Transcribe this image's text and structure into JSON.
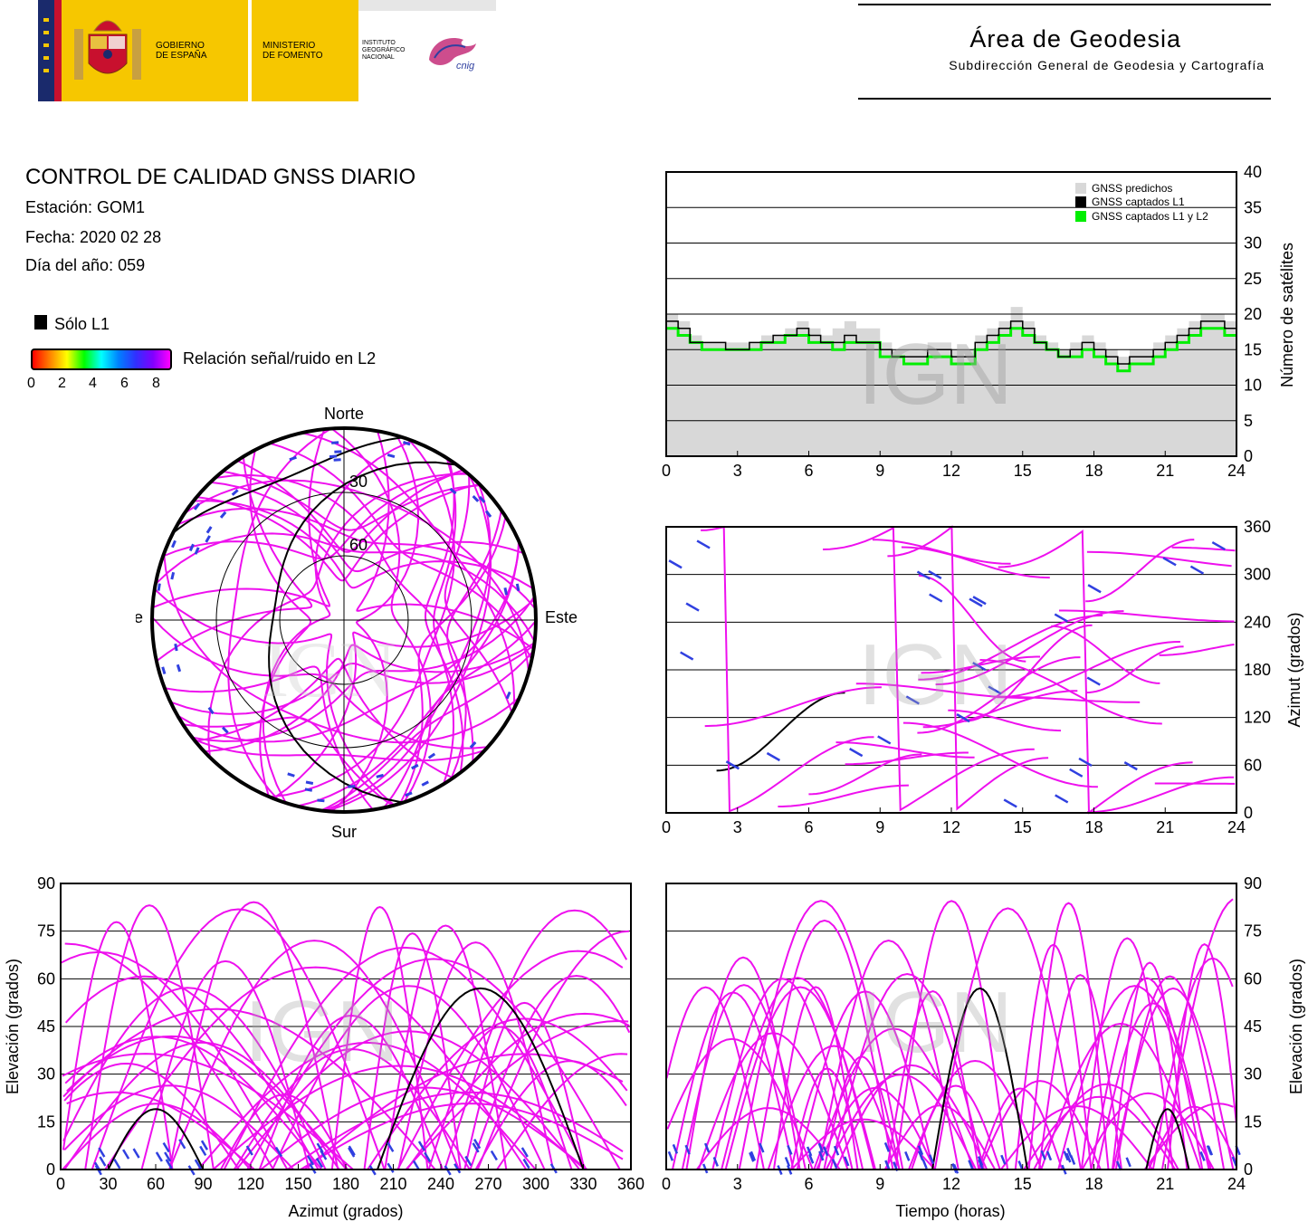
{
  "header": {
    "gov_line1": "GOBIERNO",
    "gov_line2": "DE ESPAÑA",
    "min_line1": "MINISTERIO",
    "min_line2": "DE FOMENTO",
    "ign_line1": "INSTITUTO",
    "ign_line2": "GEOGRÁFICO",
    "ign_line3": "NACIONAL",
    "cnig": "cnig",
    "area_title": "Área de Geodesia",
    "area_subtitle": "Subdirección General de Geodesia y Cartografía"
  },
  "info": {
    "title": "CONTROL DE CALIDAD GNSS DIARIO",
    "station": "Estación: GOM1",
    "date": "Fecha: 2020 02 28",
    "doy": "Día del año: 059",
    "legend_l1": "Sólo L1",
    "legend_snr": "Relación señal/ruido en L2",
    "snr_ticks": [
      "0",
      "2",
      "4",
      "6",
      "8"
    ],
    "snr_colors": [
      "#ff0000",
      "#ff8000",
      "#ffff00",
      "#00ff00",
      "#00ffff",
      "#0080ff",
      "#3030ff",
      "#8000ff",
      "#ff00ff"
    ]
  },
  "watermark": "IGN",
  "colors": {
    "track": "#ee10ee",
    "track_low": "#3040e0",
    "l1_only": "#000000",
    "predicted": "#d8d8d8",
    "captured_l1": "#000000",
    "captured_l1l2": "#00ee00"
  },
  "chart_data": [
    {
      "id": "satellites",
      "type": "line",
      "xlim": [
        0,
        24
      ],
      "ylim": [
        0,
        40
      ],
      "xticks": [
        "0",
        "3",
        "6",
        "9",
        "12",
        "15",
        "18",
        "21",
        "24"
      ],
      "yticks": [
        "0",
        "5",
        "10",
        "15",
        "20",
        "25",
        "30",
        "35",
        "40"
      ],
      "ylabel": "Número de satélites",
      "legend": [
        "GNSS predichos",
        "GNSS captados L1",
        "GNSS captados L1 y L2"
      ],
      "x": [
        0,
        0.5,
        1,
        1.5,
        2,
        2.5,
        3,
        3.5,
        4,
        4.5,
        5,
        5.5,
        6,
        6.5,
        7,
        7.5,
        8,
        8.5,
        9,
        9.5,
        10,
        10.5,
        11,
        11.5,
        12,
        12.5,
        13,
        13.5,
        14,
        14.5,
        15,
        15.5,
        16,
        16.5,
        17,
        17.5,
        18,
        18.5,
        19,
        19.5,
        20,
        20.5,
        21,
        21.5,
        22,
        22.5,
        23,
        23.5,
        24
      ],
      "series": [
        {
          "name": "GNSS predichos",
          "values": [
            20,
            19,
            17,
            16,
            16,
            16,
            16,
            16,
            17,
            17,
            18,
            19,
            18,
            17,
            18,
            19,
            18,
            18,
            16,
            15,
            15,
            15,
            16,
            16,
            15,
            15,
            17,
            18,
            19,
            21,
            19,
            17,
            16,
            15,
            16,
            17,
            16,
            15,
            14,
            15,
            15,
            16,
            17,
            18,
            19,
            20,
            20,
            19,
            18
          ]
        },
        {
          "name": "GNSS captados L1",
          "values": [
            19,
            18,
            16,
            16,
            16,
            15,
            15,
            16,
            16,
            17,
            17,
            18,
            17,
            16,
            16,
            17,
            16,
            16,
            15,
            14,
            14,
            14,
            15,
            15,
            14,
            14,
            16,
            17,
            18,
            19,
            18,
            16,
            15,
            14,
            15,
            16,
            15,
            14,
            13,
            14,
            14,
            15,
            16,
            17,
            18,
            19,
            19,
            18,
            17
          ]
        },
        {
          "name": "GNSS captados L1 y L2",
          "values": [
            18,
            17,
            16,
            15,
            15,
            15,
            15,
            15,
            16,
            16,
            17,
            17,
            16,
            16,
            15,
            16,
            16,
            16,
            14,
            14,
            13,
            13,
            14,
            14,
            13,
            13,
            15,
            16,
            17,
            18,
            17,
            16,
            15,
            14,
            14,
            15,
            14,
            13,
            12,
            13,
            13,
            14,
            15,
            16,
            17,
            18,
            18,
            17,
            17
          ]
        }
      ]
    },
    {
      "id": "skyplot",
      "type": "scatter",
      "title": "",
      "directions": {
        "north": "Norte",
        "south": "Sur",
        "east": "Este",
        "west": "Oeste"
      },
      "rings": [
        "30",
        "60"
      ]
    },
    {
      "id": "azimuth-time",
      "type": "scatter",
      "xlim": [
        0,
        24
      ],
      "ylim": [
        0,
        360
      ],
      "xticks": [
        "0",
        "3",
        "6",
        "9",
        "12",
        "15",
        "18",
        "21",
        "24"
      ],
      "yticks": [
        "0",
        "60",
        "120",
        "180",
        "240",
        "300",
        "360"
      ],
      "ylabel": "Azimut (grados)"
    },
    {
      "id": "elevation-azimuth",
      "type": "scatter",
      "xlim": [
        0,
        360
      ],
      "ylim": [
        0,
        90
      ],
      "xticks": [
        "0",
        "30",
        "60",
        "90",
        "120",
        "150",
        "180",
        "210",
        "240",
        "270",
        "300",
        "330",
        "360"
      ],
      "yticks": [
        "0",
        "15",
        "30",
        "45",
        "60",
        "75",
        "90"
      ],
      "xlabel": "Azimut (grados)",
      "ylabel": "Elevación (grados)"
    },
    {
      "id": "elevation-time",
      "type": "line",
      "xlim": [
        0,
        24
      ],
      "ylim": [
        0,
        90
      ],
      "xticks": [
        "0",
        "3",
        "6",
        "9",
        "12",
        "15",
        "18",
        "21",
        "24"
      ],
      "yticks": [
        "0",
        "15",
        "30",
        "45",
        "60",
        "75",
        "90"
      ],
      "xlabel": "Tiempo (horas)",
      "ylabel": "Elevación (grados)"
    }
  ]
}
